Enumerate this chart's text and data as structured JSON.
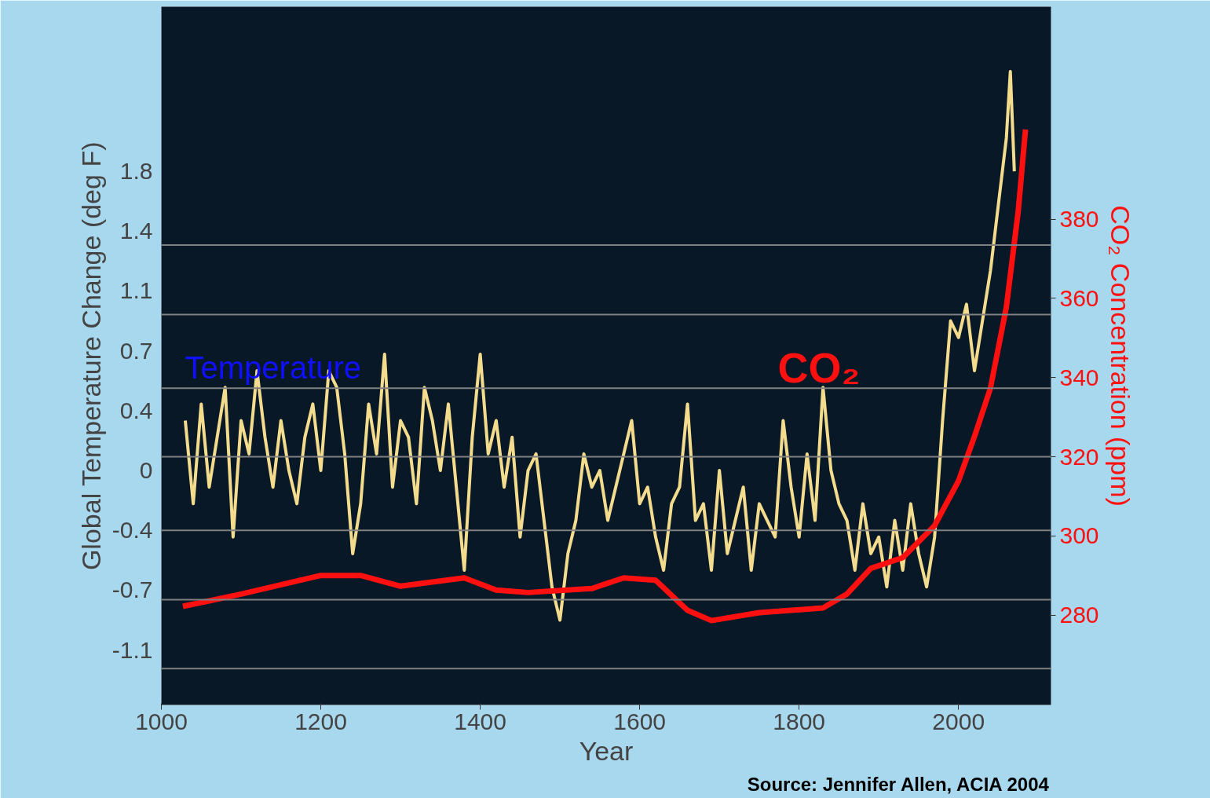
{
  "chart_data": {
    "type": "line",
    "xlabel": "Year",
    "ylabel": "Global Temperature Change (deg F)",
    "y2label": "CO₂ Concentration (ppm)",
    "xlim": [
      1000,
      2116
    ],
    "xticks": [
      1000,
      1200,
      1400,
      1600,
      1800,
      2000
    ],
    "ylim": [
      -1.41,
      2.79
    ],
    "yticks": [
      {
        "value": 1.8,
        "label": "1.8"
      },
      {
        "value": 1.44,
        "label": "1.4"
      },
      {
        "value": 1.08,
        "label": "1.1"
      },
      {
        "value": 0.72,
        "label": "0.7"
      },
      {
        "value": 0.36,
        "label": "0.4"
      },
      {
        "value": 0,
        "label": "0"
      },
      {
        "value": -0.36,
        "label": "-0.4"
      },
      {
        "value": -0.72,
        "label": "-0.7"
      },
      {
        "value": -1.08,
        "label": "-1.1"
      }
    ],
    "y2lim": [
      257.3,
      433.7
    ],
    "y2ticks": [
      280,
      300,
      320,
      340,
      360,
      380
    ],
    "grid": false,
    "series": [
      {
        "color": "#f3dc8e",
        "x": [
          1030,
          1040,
          1050,
          1060,
          1070,
          1080,
          1090,
          1100,
          1110,
          1120,
          1130,
          1140,
          1150,
          1160,
          1170,
          1180,
          1190,
          1200,
          1210,
          1220,
          1230,
          1240,
          1250,
          1260,
          1270,
          1280,
          1290,
          1300,
          1310,
          1320,
          1330,
          1340,
          1350,
          1360,
          1370,
          1380,
          1390,
          1400,
          1410,
          1420,
          1430,
          1440,
          1450,
          1460,
          1470,
          1480,
          1490,
          1500,
          1510,
          1520,
          1530,
          1540,
          1550,
          1560,
          1570,
          1580,
          1590,
          1600,
          1610,
          1620,
          1630,
          1640,
          1650,
          1660,
          1670,
          1680,
          1690,
          1700,
          1710,
          1720,
          1730,
          1740,
          1750,
          1760,
          1770,
          1780,
          1790,
          1800,
          1810,
          1820,
          1830,
          1840,
          1850,
          1860,
          1870,
          1880,
          1890,
          1900,
          1910,
          1920,
          1930,
          1940,
          1950,
          1960,
          1970,
          1980,
          1990,
          2000,
          2010,
          2020,
          2030,
          2040,
          2050,
          2060,
          2065,
          2070
        ],
        "values": [
          0.3,
          -0.2,
          0.4,
          -0.1,
          0.2,
          0.5,
          -0.4,
          0.3,
          0.1,
          0.6,
          0.2,
          -0.1,
          0.3,
          0.0,
          -0.2,
          0.2,
          0.4,
          0.0,
          0.6,
          0.5,
          0.1,
          -0.5,
          -0.2,
          0.4,
          0.1,
          0.7,
          -0.1,
          0.3,
          0.2,
          -0.2,
          0.5,
          0.3,
          0.0,
          0.4,
          -0.1,
          -0.6,
          0.2,
          0.7,
          0.1,
          0.3,
          -0.1,
          0.2,
          -0.4,
          0.0,
          0.1,
          -0.3,
          -0.7,
          -0.9,
          -0.5,
          -0.3,
          0.1,
          -0.1,
          0.0,
          -0.3,
          -0.1,
          0.1,
          0.3,
          -0.2,
          -0.1,
          -0.4,
          -0.6,
          -0.2,
          -0.1,
          0.4,
          -0.3,
          -0.2,
          -0.6,
          0.0,
          -0.5,
          -0.3,
          -0.1,
          -0.6,
          -0.2,
          -0.3,
          -0.4,
          0.3,
          -0.1,
          -0.4,
          0.1,
          -0.3,
          0.5,
          0.0,
          -0.2,
          -0.3,
          -0.6,
          -0.2,
          -0.5,
          -0.4,
          -0.7,
          -0.3,
          -0.6,
          -0.2,
          -0.5,
          -0.7,
          -0.4,
          0.3,
          0.9,
          0.8,
          1.0,
          0.6,
          0.9,
          1.2,
          1.6,
          2.0,
          2.4,
          1.8
        ]
      },
      {
        "color": "#ff1010",
        "axis": "y2",
        "x": [
          1027,
          1100,
          1200,
          1250,
          1300,
          1380,
          1420,
          1460,
          1540,
          1580,
          1620,
          1660,
          1690,
          1750,
          1830,
          1860,
          1890,
          1930,
          1970,
          2000,
          2020,
          2040,
          2060,
          2075,
          2084
        ],
        "values": [
          282.2,
          285.3,
          290,
          290,
          287.3,
          289.4,
          286.3,
          285.7,
          286.7,
          289.4,
          288.8,
          281.2,
          278.6,
          280.6,
          281.8,
          285.3,
          291.8,
          294.5,
          302.6,
          313.9,
          325.1,
          337.3,
          357.8,
          382.2,
          402.7
        ]
      }
    ],
    "ref_lines": [
      {
        "axis": "y2",
        "value": 373.5,
        "color": "#808080"
      },
      {
        "axis": "y2",
        "value": 355.9,
        "color": "#808080"
      },
      {
        "axis": "y2",
        "value": 337.3,
        "color": "#808080"
      },
      {
        "axis": "y2",
        "value": 320,
        "color": "#808080"
      },
      {
        "axis": "y2",
        "value": 301.4,
        "color": "#808080"
      },
      {
        "axis": "y2",
        "value": 283.9,
        "color": "#808080"
      },
      {
        "axis": "y2",
        "value": 266.5,
        "color": "#808080"
      }
    ],
    "annotations": [
      "Temperature",
      "CO₂",
      "Source: Jennifer Allen, ACIA 2004"
    ]
  }
}
